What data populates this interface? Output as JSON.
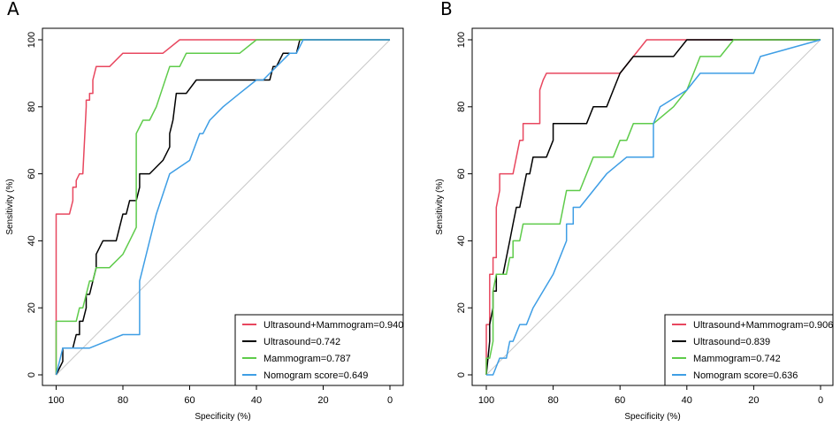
{
  "chart_data": [
    {
      "type": "line",
      "panel_label": "A",
      "xlabel": "Specificity (%)",
      "ylabel": "Sensitivity (%)",
      "xlim": [
        100,
        0
      ],
      "ylim": [
        0,
        100
      ],
      "x_ticks": [
        "100",
        "80",
        "60",
        "40",
        "20",
        "0"
      ],
      "y_ticks": [
        "0",
        "20",
        "40",
        "60",
        "80",
        "100"
      ],
      "legend_position": "bottom-right",
      "series": [
        {
          "name": "Ultrasound+Mammogram=0.940",
          "color": "#e8475f",
          "x": [
            100,
            100,
            96,
            95,
            95,
            94,
            94,
            93,
            92,
            91,
            91,
            90,
            90,
            89,
            89,
            88,
            87,
            84,
            80,
            76,
            68,
            63,
            52,
            0
          ],
          "y": [
            0,
            48,
            48,
            52,
            56,
            56,
            58,
            60,
            60,
            80,
            82,
            82,
            84,
            84,
            88,
            92,
            92,
            92,
            96,
            96,
            96,
            100,
            100,
            100
          ]
        },
        {
          "name": "Ultrasound=0.742",
          "color": "#000000",
          "x": [
            100,
            98,
            98,
            97,
            96,
            95,
            94,
            93,
            93,
            92,
            91,
            91,
            90,
            89,
            88,
            88,
            86,
            84,
            82,
            81,
            80,
            79,
            78,
            76,
            75,
            75,
            72,
            68,
            66,
            66,
            65,
            64,
            62,
            61,
            58,
            55,
            50,
            44,
            42,
            40,
            38,
            36,
            35,
            34,
            32,
            31,
            30,
            28,
            27,
            0
          ],
          "y": [
            0,
            4,
            8,
            8,
            8,
            8,
            12,
            12,
            16,
            16,
            20,
            24,
            24,
            28,
            32,
            36,
            40,
            40,
            40,
            44,
            48,
            48,
            52,
            52,
            56,
            60,
            60,
            64,
            68,
            72,
            76,
            84,
            84,
            84,
            88,
            88,
            88,
            88,
            88,
            88,
            88,
            88,
            92,
            92,
            96,
            96,
            96,
            96,
            100,
            100
          ]
        },
        {
          "name": "Mammogram=0.787",
          "color": "#5ecb4a",
          "x": [
            100,
            100,
            98,
            96,
            94,
            93,
            92,
            91,
            90,
            89,
            88,
            87,
            84,
            80,
            78,
            76,
            76,
            74,
            72,
            70,
            66,
            63,
            61,
            58,
            56,
            54,
            52,
            50,
            45,
            40,
            38,
            36,
            0
          ],
          "y": [
            0,
            16,
            16,
            16,
            16,
            20,
            20,
            24,
            28,
            28,
            32,
            32,
            32,
            36,
            40,
            44,
            72,
            76,
            76,
            80,
            92,
            92,
            96,
            96,
            96,
            96,
            96,
            96,
            96,
            100,
            100,
            100,
            100
          ]
        },
        {
          "name": "Nomogram score=0.649",
          "color": "#3e9ee5",
          "x": [
            100,
            99,
            98,
            97,
            90,
            80,
            75,
            75,
            74,
            72,
            70,
            66,
            60,
            57,
            56,
            54,
            50,
            45,
            40,
            38,
            30,
            28,
            26,
            25,
            0
          ],
          "y": [
            0,
            4,
            8,
            8,
            8,
            12,
            12,
            28,
            32,
            40,
            48,
            60,
            64,
            72,
            72,
            76,
            80,
            84,
            88,
            88,
            96,
            96,
            100,
            100,
            100
          ]
        }
      ]
    },
    {
      "type": "line",
      "panel_label": "B",
      "xlabel": "Specificity (%)",
      "ylabel": "Sensitivity (%)",
      "xlim": [
        100,
        0
      ],
      "ylim": [
        0,
        100
      ],
      "x_ticks": [
        "100",
        "80",
        "60",
        "40",
        "20",
        "0"
      ],
      "y_ticks": [
        "0",
        "20",
        "40",
        "60",
        "80",
        "100"
      ],
      "legend_position": "bottom-right",
      "series": [
        {
          "name": "Ultrasound+Mammogram=0.906",
          "color": "#e8475f",
          "x": [
            100,
            100,
            99,
            99,
            98,
            98,
            97,
            97,
            96,
            96,
            95,
            92,
            91,
            91,
            90,
            89,
            89,
            88,
            88,
            86,
            84,
            84,
            83,
            82,
            80,
            76,
            65,
            60,
            56,
            52,
            0
          ],
          "y": [
            0,
            15,
            15,
            30,
            30,
            35,
            35,
            50,
            55,
            60,
            60,
            60,
            65,
            65,
            70,
            70,
            75,
            75,
            75,
            75,
            75,
            85,
            88,
            90,
            90,
            90,
            90,
            90,
            95,
            100,
            100
          ]
        },
        {
          "name": "Ultrasound=0.839",
          "color": "#000000",
          "x": [
            100,
            99,
            99,
            98,
            98,
            97,
            97,
            96,
            95,
            94,
            94,
            93,
            92,
            91,
            90,
            89,
            88,
            87,
            86,
            85,
            84,
            82,
            80,
            80,
            76,
            72,
            70,
            68,
            66,
            64,
            62,
            60,
            56,
            52,
            48,
            44,
            40,
            29,
            0
          ],
          "y": [
            0,
            10,
            15,
            20,
            25,
            25,
            30,
            30,
            30,
            35,
            35,
            40,
            45,
            50,
            50,
            55,
            60,
            60,
            65,
            65,
            65,
            65,
            70,
            75,
            75,
            75,
            75,
            80,
            80,
            80,
            85,
            90,
            95,
            95,
            95,
            95,
            100,
            100,
            100
          ]
        },
        {
          "name": "Mammogram=0.742",
          "color": "#5ecb4a",
          "x": [
            100,
            100,
            99,
            98,
            98,
            97,
            96,
            95,
            94,
            93,
            92,
            92,
            90,
            89,
            88,
            87,
            86,
            84,
            82,
            78,
            76,
            75,
            72,
            70,
            68,
            65,
            62,
            60,
            58,
            56,
            54,
            50,
            44,
            40,
            38,
            36,
            30,
            26,
            0
          ],
          "y": [
            0,
            5,
            5,
            10,
            25,
            30,
            30,
            30,
            30,
            35,
            35,
            40,
            40,
            45,
            45,
            45,
            45,
            45,
            45,
            45,
            55,
            55,
            55,
            60,
            65,
            65,
            65,
            70,
            70,
            75,
            75,
            75,
            80,
            85,
            90,
            95,
            95,
            100,
            100
          ]
        },
        {
          "name": "Nomogram score=0.636",
          "color": "#3e9ee5",
          "x": [
            100,
            99,
            98,
            96,
            94,
            93,
            92,
            90,
            88,
            86,
            80,
            76,
            76,
            74,
            74,
            72,
            68,
            64,
            58,
            56,
            52,
            50,
            50,
            50,
            48,
            40,
            36,
            30,
            24,
            20,
            18,
            0
          ],
          "y": [
            0,
            0,
            0,
            5,
            5,
            10,
            10,
            15,
            15,
            20,
            30,
            40,
            45,
            45,
            50,
            50,
            55,
            60,
            65,
            65,
            65,
            65,
            70,
            75,
            80,
            85,
            90,
            90,
            90,
            90,
            95,
            100
          ]
        }
      ]
    }
  ]
}
